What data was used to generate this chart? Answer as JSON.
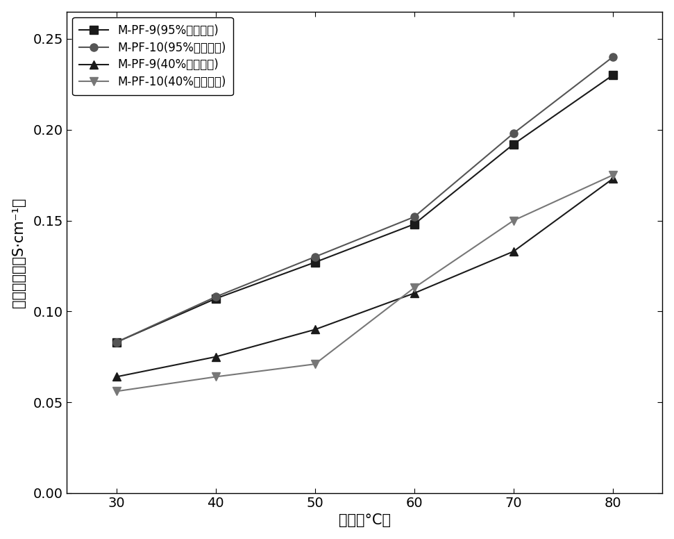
{
  "x": [
    30,
    40,
    50,
    60,
    70,
    80
  ],
  "series": [
    {
      "label": "M-PF-9(95%相对湿度)",
      "y": [
        0.083,
        0.107,
        0.127,
        0.148,
        0.192,
        0.23
      ],
      "color": "#1a1a1a",
      "marker": "s",
      "linestyle": "-"
    },
    {
      "label": "M-PF-10(95%相对湿度)",
      "y": [
        0.083,
        0.108,
        0.13,
        0.152,
        0.198,
        0.24
      ],
      "color": "#555555",
      "marker": "o",
      "linestyle": "-"
    },
    {
      "label": "M-PF-9(40%相对湿度)",
      "y": [
        0.064,
        0.075,
        0.09,
        0.11,
        0.133,
        0.173
      ],
      "color": "#1a1a1a",
      "marker": "^",
      "linestyle": "-"
    },
    {
      "label": "M-PF-10(40%相对湿度)",
      "y": [
        0.056,
        0.064,
        0.071,
        0.113,
        0.15,
        0.175
      ],
      "color": "#777777",
      "marker": "v",
      "linestyle": "-"
    }
  ],
  "xlabel": "温度（°C）",
  "ylabel": "质子传导率（S·cm⁻¹）",
  "xlim": [
    25,
    85
  ],
  "ylim": [
    0.0,
    0.265
  ],
  "yticks": [
    0.0,
    0.05,
    0.1,
    0.15,
    0.2,
    0.25
  ],
  "xticks": [
    30,
    40,
    50,
    60,
    70,
    80
  ],
  "legend_loc": "upper left",
  "label_fontsize": 15,
  "tick_fontsize": 14,
  "legend_fontsize": 12,
  "markersize": 8,
  "linewidth": 1.5
}
